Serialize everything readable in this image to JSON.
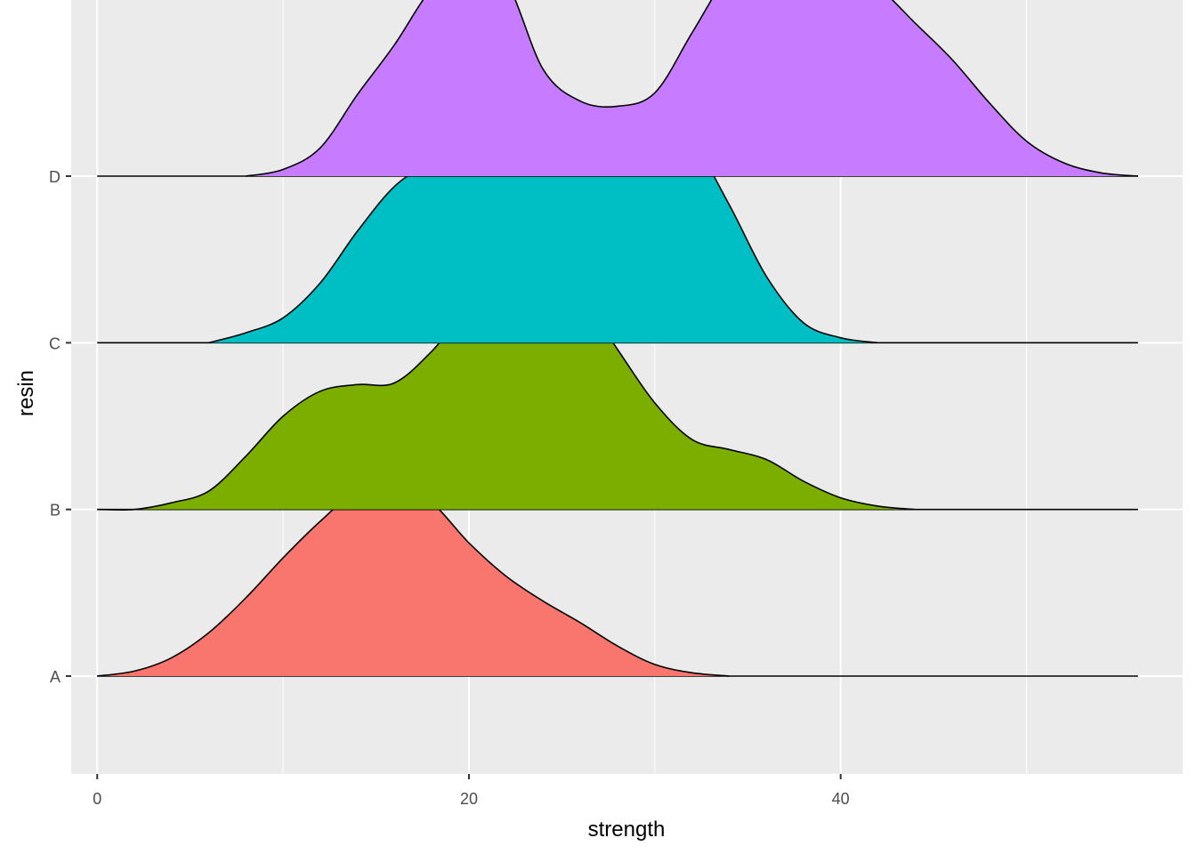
{
  "chart_data": {
    "type": "ridgeline",
    "xlabel": "strength",
    "ylabel": "resin",
    "xlim": [
      -1.4,
      58.4
    ],
    "xticks": [
      0,
      20,
      40
    ],
    "x_minor_gridlines": [
      10,
      30,
      50
    ],
    "grid": true,
    "legend": "none",
    "scale": 1.8,
    "categories": [
      "A",
      "B",
      "C",
      "D"
    ],
    "x": [
      0,
      2,
      4,
      6,
      8,
      10,
      12,
      14,
      16,
      18,
      20,
      22,
      24,
      26,
      28,
      30,
      32,
      34,
      36,
      38,
      40,
      42,
      44,
      46,
      48,
      50,
      52,
      54,
      56
    ],
    "series": [
      {
        "name": "A",
        "color": "#F8766D",
        "values": [
          0.0,
          0.03,
          0.11,
          0.26,
          0.47,
          0.71,
          0.93,
          1.11,
          1.14,
          1.04,
          0.8,
          0.6,
          0.45,
          0.32,
          0.18,
          0.07,
          0.02,
          0.0,
          null,
          null,
          null,
          null,
          null,
          null,
          null,
          null,
          null,
          null,
          null
        ]
      },
      {
        "name": "B",
        "color": "#7CAE00",
        "values": [
          0.0,
          0.0,
          0.04,
          0.11,
          0.32,
          0.56,
          0.71,
          0.75,
          0.76,
          0.95,
          1.21,
          1.39,
          1.47,
          1.29,
          0.96,
          0.64,
          0.42,
          0.36,
          0.3,
          0.17,
          0.07,
          0.02,
          0.0,
          null,
          null,
          null,
          null,
          null,
          null
        ]
      },
      {
        "name": "C",
        "color": "#00BFC4",
        "values": [
          null,
          null,
          null,
          0.0,
          0.06,
          0.15,
          0.36,
          0.67,
          0.94,
          1.09,
          1.23,
          1.34,
          1.4,
          1.41,
          1.4,
          1.36,
          1.21,
          0.83,
          0.4,
          0.12,
          0.03,
          0.0,
          null,
          null,
          null,
          null,
          null,
          null,
          null
        ]
      },
      {
        "name": "D",
        "color": "#C77CFF",
        "values": [
          null,
          null,
          null,
          null,
          0.0,
          0.04,
          0.17,
          0.49,
          0.79,
          1.13,
          1.32,
          1.17,
          0.64,
          0.45,
          0.42,
          0.5,
          0.86,
          1.22,
          1.42,
          1.43,
          1.29,
          1.14,
          0.92,
          0.7,
          0.44,
          0.21,
          0.08,
          0.02,
          0.0
        ]
      }
    ]
  }
}
